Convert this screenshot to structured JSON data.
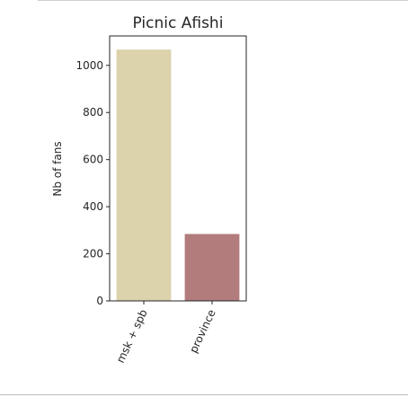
{
  "chart_data": {
    "type": "bar",
    "title": "Picnic Afishi",
    "xlabel": "",
    "ylabel": "Nb of fans",
    "categories": [
      "msk + spb",
      "province"
    ],
    "values": [
      1067,
      284
    ],
    "colors": [
      "#dcd2ac",
      "#b27c7c"
    ],
    "ylim": [
      0,
      1125
    ],
    "yticks": [
      0,
      200,
      400,
      600,
      800,
      1000
    ],
    "grid": false,
    "legend": "none"
  }
}
